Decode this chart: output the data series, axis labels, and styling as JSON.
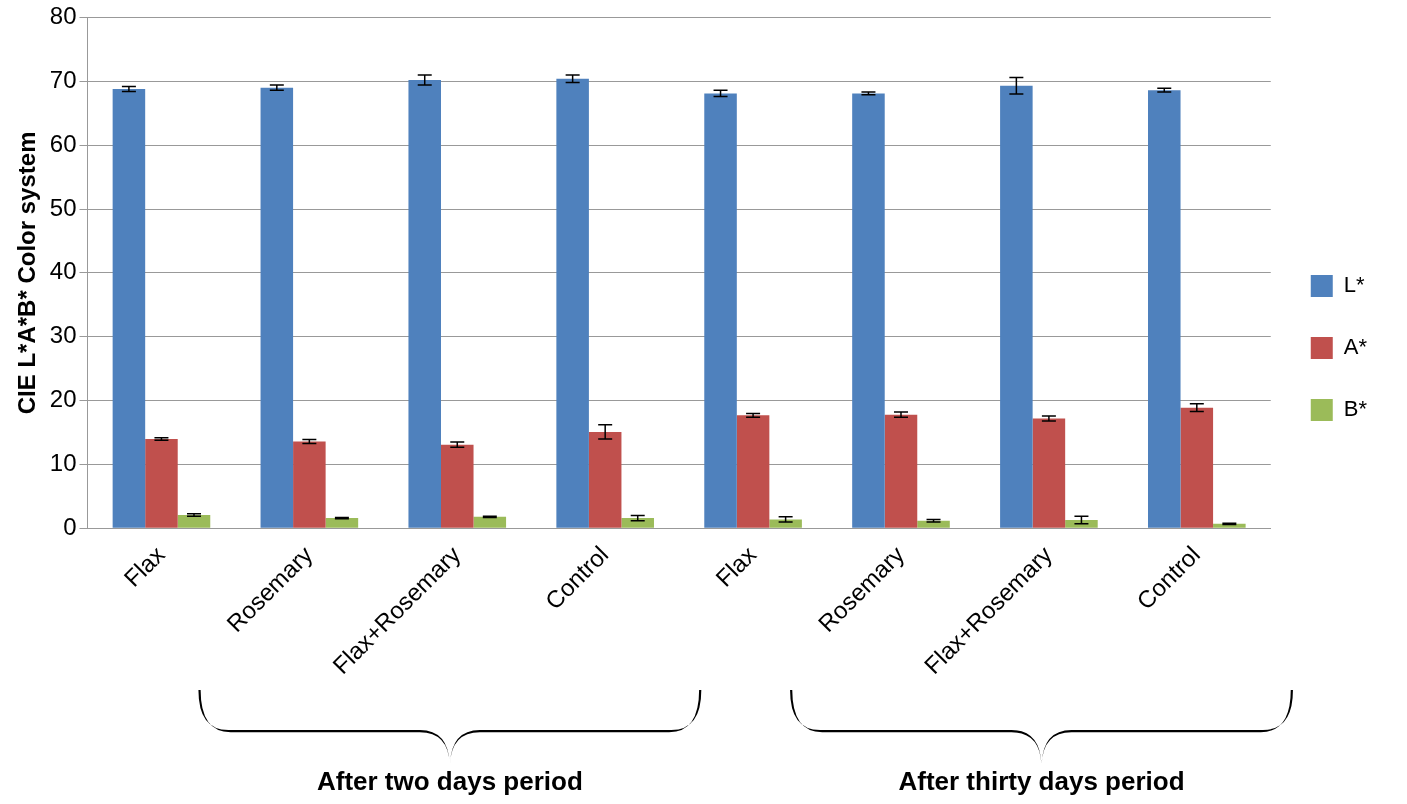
{
  "chart_data": {
    "type": "bar",
    "ylabel": "CIE L*A*B* Color system",
    "categories": [
      "Flax",
      "Rosemary",
      "Flax+Rosemary",
      "Control",
      "Flax",
      "Rosemary",
      "Flax+Rosemary",
      "Control"
    ],
    "series": [
      {
        "name": "L*",
        "color": "#4f81bd",
        "values": [
          68.8,
          69.0,
          70.2,
          70.4,
          68.1,
          68.1,
          69.3,
          68.6
        ],
        "errors": [
          0.4,
          0.4,
          0.8,
          0.6,
          0.5,
          0.2,
          1.3,
          0.3
        ]
      },
      {
        "name": "A*",
        "color": "#c0504d",
        "values": [
          14.0,
          13.6,
          13.1,
          15.1,
          17.7,
          17.8,
          17.2,
          18.9
        ],
        "errors": [
          0.2,
          0.3,
          0.4,
          1.1,
          0.3,
          0.4,
          0.4,
          0.6
        ]
      },
      {
        "name": "B*",
        "color": "#9bbb59",
        "values": [
          2.1,
          1.6,
          1.8,
          1.6,
          1.4,
          1.2,
          1.3,
          0.7
        ],
        "errors": [
          0.2,
          0.1,
          0.1,
          0.4,
          0.4,
          0.2,
          0.6,
          0.1
        ]
      }
    ],
    "ylim": [
      0,
      80
    ],
    "yticks": [
      0,
      10,
      20,
      30,
      40,
      50,
      60,
      70,
      80
    ],
    "grid": "y",
    "legend": "right",
    "annotations": [
      "After two days period",
      "After thirty days period"
    ]
  }
}
